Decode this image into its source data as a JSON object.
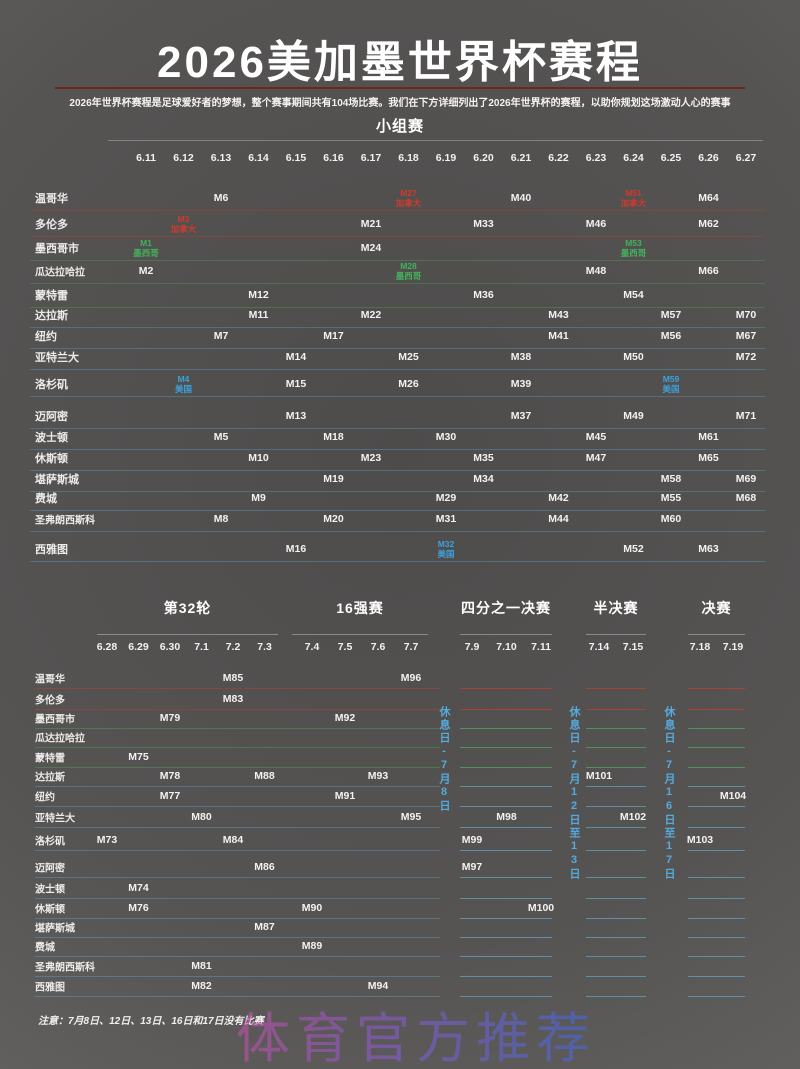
{
  "header": {
    "title": "2026美加墨世界杯赛程",
    "subtitle": "2026年世界杯赛程是足球爱好者的梦想，整个赛事期间共有104场比赛。我们在下方详细列出了2026年世界杯的赛程，以助你规划这场激动人心的赛事"
  },
  "colors": {
    "canada": "#cf3a2d",
    "mexico": "#43b15a",
    "usa": "#3ba2dc",
    "rest_day_blue": "#55aadd",
    "title_divider_red": "#6e2621",
    "background_gray": "#565453",
    "text_white": "#f3f2f1"
  },
  "chart_data": {
    "type": "table",
    "title": "2026美加墨世界杯赛程",
    "group_stage": {
      "title": "小组赛",
      "dates": [
        "6.11",
        "6.12",
        "6.13",
        "6.14",
        "6.15",
        "6.16",
        "6.17",
        "6.18",
        "6.19",
        "6.20",
        "6.21",
        "6.22",
        "6.23",
        "6.24",
        "6.25",
        "6.26",
        "6.27"
      ],
      "rows": [
        {
          "city": "温哥华",
          "country": "canada",
          "matches": [
            {
              "date": "6.13",
              "label": "M6"
            },
            {
              "date": "6.18",
              "label": "M27",
              "tag": "加拿大",
              "color": "canada"
            },
            {
              "date": "6.21",
              "label": "M40"
            },
            {
              "date": "6.24",
              "label": "M51",
              "tag": "加拿大",
              "color": "canada"
            },
            {
              "date": "6.26",
              "label": "M64"
            }
          ]
        },
        {
          "city": "多伦多",
          "country": "canada",
          "matches": [
            {
              "date": "6.12",
              "label": "M3",
              "tag": "加拿大",
              "color": "canada"
            },
            {
              "date": "6.17",
              "label": "M21"
            },
            {
              "date": "6.20",
              "label": "M33"
            },
            {
              "date": "6.23",
              "label": "M46"
            },
            {
              "date": "6.26",
              "label": "M62"
            }
          ]
        },
        {
          "city": "墨西哥市",
          "country": "mexico",
          "matches": [
            {
              "date": "6.11",
              "label": "M1",
              "tag": "墨西哥",
              "color": "mexico"
            },
            {
              "date": "6.17",
              "label": "M24"
            },
            {
              "date": "6.24",
              "label": "M53",
              "tag": "墨西哥",
              "color": "mexico"
            }
          ]
        },
        {
          "city": "瓜达拉哈拉",
          "country": "mexico",
          "matches": [
            {
              "date": "6.11",
              "label": "M2"
            },
            {
              "date": "6.18",
              "label": "M28",
              "tag": "墨西哥",
              "color": "mexico"
            },
            {
              "date": "6.23",
              "label": "M48"
            },
            {
              "date": "6.26",
              "label": "M66"
            }
          ]
        },
        {
          "city": "蒙特雷",
          "country": "mexico",
          "matches": [
            {
              "date": "6.14",
              "label": "M12"
            },
            {
              "date": "6.20",
              "label": "M36"
            },
            {
              "date": "6.24",
              "label": "M54"
            }
          ]
        },
        {
          "city": "达拉斯",
          "country": "usa",
          "matches": [
            {
              "date": "6.14",
              "label": "M11"
            },
            {
              "date": "6.17",
              "label": "M22"
            },
            {
              "date": "6.22",
              "label": "M43"
            },
            {
              "date": "6.25",
              "label": "M57"
            },
            {
              "date": "6.27",
              "label": "M70"
            }
          ]
        },
        {
          "city": "纽约",
          "country": "usa",
          "matches": [
            {
              "date": "6.13",
              "label": "M7"
            },
            {
              "date": "6.16",
              "label": "M17"
            },
            {
              "date": "6.22",
              "label": "M41"
            },
            {
              "date": "6.25",
              "label": "M56"
            },
            {
              "date": "6.27",
              "label": "M67"
            }
          ]
        },
        {
          "city": "亚特兰大",
          "country": "usa",
          "matches": [
            {
              "date": "6.15",
              "label": "M14"
            },
            {
              "date": "6.18",
              "label": "M25"
            },
            {
              "date": "6.21",
              "label": "M38"
            },
            {
              "date": "6.24",
              "label": "M50"
            },
            {
              "date": "6.27",
              "label": "M72"
            }
          ]
        },
        {
          "city": "洛杉矶",
          "country": "usa",
          "matches": [
            {
              "date": "6.12",
              "label": "M4",
              "tag": "美国",
              "color": "usa"
            },
            {
              "date": "6.15",
              "label": "M15"
            },
            {
              "date": "6.18",
              "label": "M26"
            },
            {
              "date": "6.21",
              "label": "M39"
            },
            {
              "date": "6.25",
              "label": "M59",
              "tag": "美国",
              "color": "usa"
            }
          ]
        },
        {
          "city": "迈阿密",
          "country": "usa",
          "matches": [
            {
              "date": "6.15",
              "label": "M13"
            },
            {
              "date": "6.21",
              "label": "M37"
            },
            {
              "date": "6.24",
              "label": "M49"
            },
            {
              "date": "6.27",
              "label": "M71"
            }
          ]
        },
        {
          "city": "波士顿",
          "country": "usa",
          "matches": [
            {
              "date": "6.13",
              "label": "M5"
            },
            {
              "date": "6.16",
              "label": "M18"
            },
            {
              "date": "6.19",
              "label": "M30"
            },
            {
              "date": "6.23",
              "label": "M45"
            },
            {
              "date": "6.26",
              "label": "M61"
            }
          ]
        },
        {
          "city": "休斯顿",
          "country": "usa",
          "matches": [
            {
              "date": "6.14",
              "label": "M10"
            },
            {
              "date": "6.17",
              "label": "M23"
            },
            {
              "date": "6.20",
              "label": "M35"
            },
            {
              "date": "6.23",
              "label": "M47"
            },
            {
              "date": "6.26",
              "label": "M65"
            }
          ]
        },
        {
          "city": "堪萨斯城",
          "country": "usa",
          "matches": [
            {
              "date": "6.16",
              "label": "M19"
            },
            {
              "date": "6.20",
              "label": "M34"
            },
            {
              "date": "6.25",
              "label": "M58"
            },
            {
              "date": "6.27",
              "label": "M69"
            }
          ]
        },
        {
          "city": "费城",
          "country": "usa",
          "matches": [
            {
              "date": "6.14",
              "label": "M9"
            },
            {
              "date": "6.19",
              "label": "M29"
            },
            {
              "date": "6.22",
              "label": "M42"
            },
            {
              "date": "6.25",
              "label": "M55"
            },
            {
              "date": "6.27",
              "label": "M68"
            }
          ]
        },
        {
          "city": "圣弗朗西斯科",
          "country": "usa",
          "matches": [
            {
              "date": "6.13",
              "label": "M8"
            },
            {
              "date": "6.16",
              "label": "M20"
            },
            {
              "date": "6.19",
              "label": "M31"
            },
            {
              "date": "6.22",
              "label": "M44"
            },
            {
              "date": "6.25",
              "label": "M60"
            }
          ]
        },
        {
          "city": "西雅图",
          "country": "usa",
          "matches": [
            {
              "date": "6.15",
              "label": "M16"
            },
            {
              "date": "6.19",
              "label": "M32",
              "tag": "美国",
              "color": "usa"
            },
            {
              "date": "6.24",
              "label": "M52"
            },
            {
              "date": "6.26",
              "label": "M63"
            }
          ]
        }
      ]
    },
    "knockout": {
      "sections": [
        {
          "title": "第32轮",
          "dates": [
            "6.28",
            "6.29",
            "6.30",
            "7.1",
            "7.2",
            "7.3"
          ]
        },
        {
          "title": "16强赛",
          "dates": [
            "7.4",
            "7.5",
            "7.6",
            "7.7"
          ]
        },
        {
          "title": "四分之一决赛",
          "dates": [
            "7.9",
            "7.10",
            "7.11"
          ]
        },
        {
          "title": "半决赛",
          "dates": [
            "7.14",
            "7.15"
          ]
        },
        {
          "title": "决赛",
          "dates": [
            "7.18",
            "7.19"
          ]
        }
      ],
      "rest_days": [
        "休息日-7月8日",
        "休息日-7月12日至13日",
        "休息日-7月16日至17日"
      ],
      "rows": [
        {
          "city": "温哥华",
          "country": "canada",
          "matches": [
            {
              "section": 0,
              "date": "7.2",
              "label": "M85"
            },
            {
              "section": 1,
              "date": "7.7",
              "label": "M96"
            }
          ]
        },
        {
          "city": "多伦多",
          "country": "canada",
          "matches": [
            {
              "section": 0,
              "date": "7.2",
              "label": "M83"
            }
          ]
        },
        {
          "city": "墨西哥市",
          "country": "mexico",
          "matches": [
            {
              "section": 0,
              "date": "6.30",
              "label": "M79"
            },
            {
              "section": 1,
              "date": "7.5",
              "label": "M92"
            }
          ]
        },
        {
          "city": "瓜达拉哈拉",
          "country": "mexico",
          "matches": []
        },
        {
          "city": "蒙特雷",
          "country": "mexico",
          "matches": [
            {
              "section": 0,
              "date": "6.29",
              "label": "M75"
            }
          ]
        },
        {
          "city": "达拉斯",
          "country": "usa",
          "matches": [
            {
              "section": 0,
              "date": "6.30",
              "label": "M78"
            },
            {
              "section": 0,
              "date": "7.3",
              "label": "M88"
            },
            {
              "section": 1,
              "date": "7.6",
              "label": "M93"
            },
            {
              "section": 3,
              "date": "7.14",
              "label": "M101"
            }
          ]
        },
        {
          "city": "纽约",
          "country": "usa",
          "matches": [
            {
              "section": 0,
              "date": "6.30",
              "label": "M77"
            },
            {
              "section": 1,
              "date": "7.5",
              "label": "M91"
            },
            {
              "section": 4,
              "date": "7.19",
              "label": "M104"
            }
          ]
        },
        {
          "city": "亚特兰大",
          "country": "usa",
          "matches": [
            {
              "section": 0,
              "date": "7.1",
              "label": "M80"
            },
            {
              "section": 1,
              "date": "7.7",
              "label": "M95"
            },
            {
              "section": 2,
              "date": "7.10",
              "label": "M98"
            },
            {
              "section": 3,
              "date": "7.15",
              "label": "M102"
            }
          ]
        },
        {
          "city": "洛杉矶",
          "country": "usa",
          "matches": [
            {
              "section": 0,
              "date": "6.28",
              "label": "M73"
            },
            {
              "section": 0,
              "date": "7.2",
              "label": "M84"
            },
            {
              "section": 2,
              "date": "7.9",
              "label": "M99"
            },
            {
              "section": 4,
              "date": "7.18",
              "label": "M103"
            }
          ]
        },
        {
          "city": "迈阿密",
          "country": "usa",
          "matches": [
            {
              "section": 0,
              "date": "7.3",
              "label": "M86"
            },
            {
              "section": 2,
              "date": "7.9",
              "label": "M97"
            }
          ]
        },
        {
          "city": "波士顿",
          "country": "usa",
          "matches": [
            {
              "section": 0,
              "date": "6.29",
              "label": "M74"
            }
          ]
        },
        {
          "city": "休斯顿",
          "country": "usa",
          "matches": [
            {
              "section": 0,
              "date": "6.29",
              "label": "M76"
            },
            {
              "section": 1,
              "date": "7.4",
              "label": "M90"
            },
            {
              "section": 2,
              "date": "7.11",
              "label": "M100"
            }
          ]
        },
        {
          "city": "堪萨斯城",
          "country": "usa",
          "matches": [
            {
              "section": 0,
              "date": "7.3",
              "label": "M87"
            }
          ]
        },
        {
          "city": "费城",
          "country": "usa",
          "matches": [
            {
              "section": 1,
              "date": "7.4",
              "label": "M89"
            }
          ]
        },
        {
          "city": "圣弗朗西斯科",
          "country": "usa",
          "matches": [
            {
              "section": 0,
              "date": "7.1",
              "label": "M81"
            }
          ]
        },
        {
          "city": "西雅图",
          "country": "usa",
          "matches": [
            {
              "section": 0,
              "date": "7.1",
              "label": "M82"
            },
            {
              "section": 1,
              "date": "7.6",
              "label": "M94"
            }
          ]
        }
      ]
    }
  },
  "footer": {
    "note": "注意：7月8日、12日、13日、16日和17日没有比赛",
    "watermark": "体育官方推荐"
  }
}
